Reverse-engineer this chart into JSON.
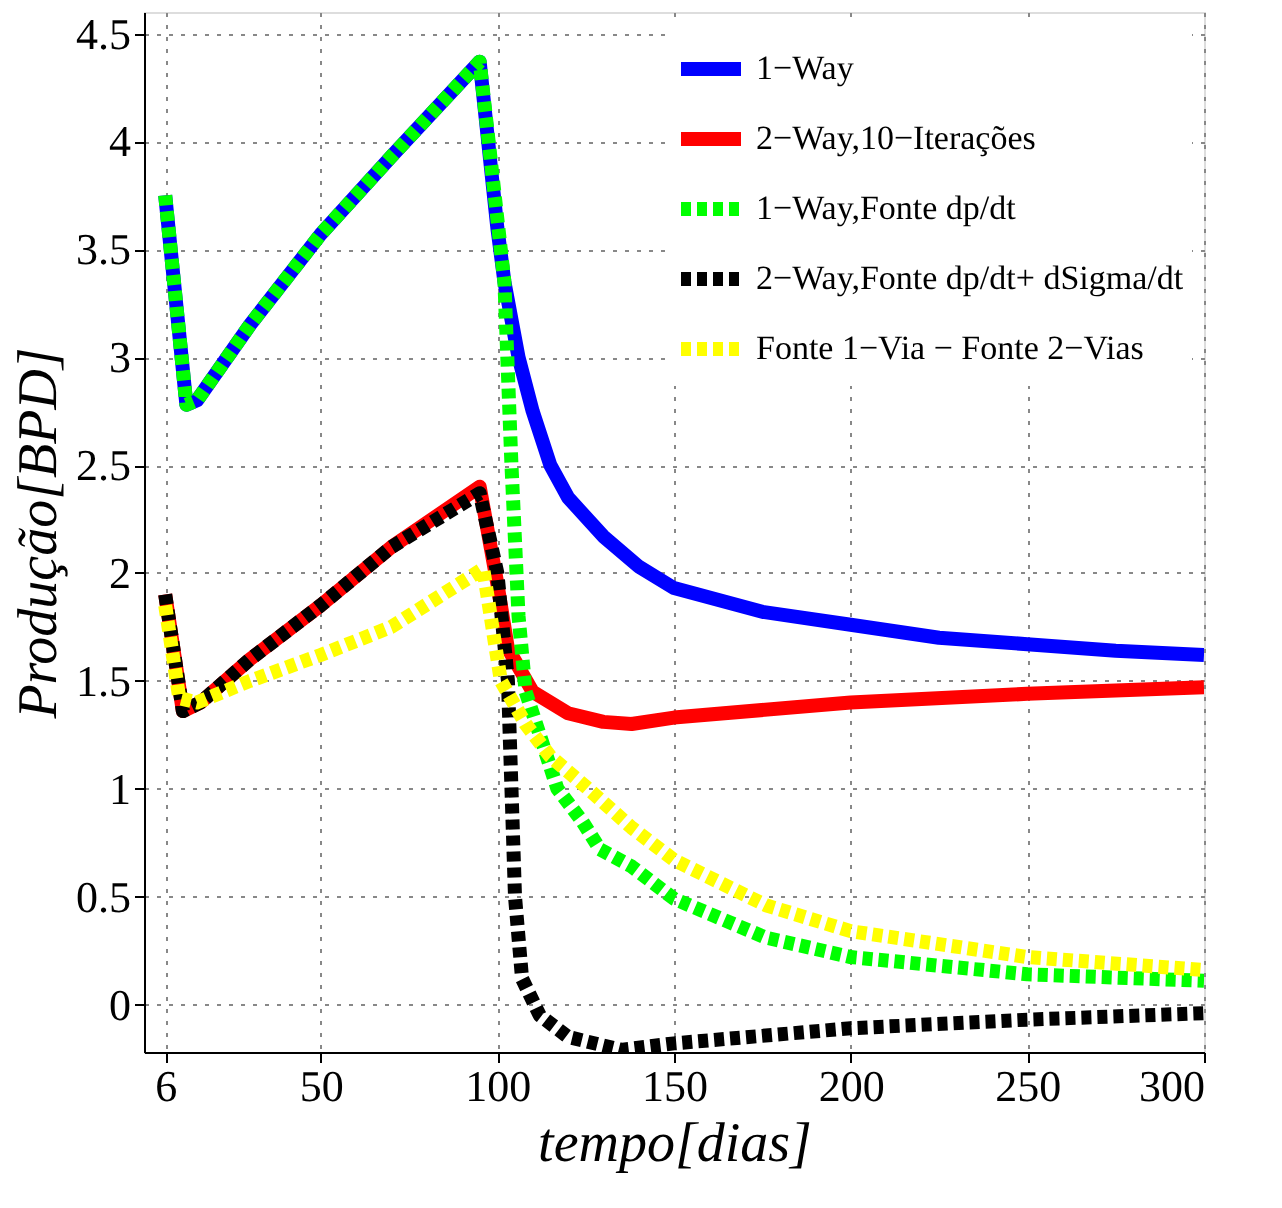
{
  "chart_data": {
    "type": "line",
    "xlabel": "tempo[dias]",
    "ylabel": "Produção[BPD]",
    "xlim": [
      0,
      300
    ],
    "xticks": [
      6,
      50,
      100,
      150,
      200,
      250,
      300
    ],
    "ylim": [
      -0.22,
      4.6
    ],
    "yticks": [
      0,
      0.5,
      1,
      1.5,
      2,
      2.5,
      3,
      3.5,
      4,
      4.5
    ],
    "grid": true,
    "legend": "top right",
    "series": [
      {
        "name": "1−Way",
        "color": "#0000ff",
        "line_style": "solid",
        "x": [
          6,
          12,
          15,
          30,
          50,
          70,
          95,
          100,
          102,
          106,
          110,
          115,
          120,
          130,
          140,
          150,
          175,
          200,
          225,
          250,
          275,
          300
        ],
        "values": [
          3.75,
          2.78,
          2.8,
          3.15,
          3.57,
          3.93,
          4.37,
          3.6,
          3.35,
          3.0,
          2.75,
          2.5,
          2.35,
          2.17,
          2.03,
          1.93,
          1.82,
          1.76,
          1.7,
          1.67,
          1.64,
          1.62
        ]
      },
      {
        "name": "2−Way,10−Iterações",
        "color": "#ff0000",
        "line_style": "solid",
        "x": [
          6,
          11,
          16,
          30,
          50,
          70,
          95,
          100,
          103,
          110,
          120,
          130,
          138,
          150,
          200,
          250,
          300
        ],
        "values": [
          1.9,
          1.36,
          1.4,
          1.6,
          1.85,
          2.12,
          2.4,
          1.95,
          1.65,
          1.45,
          1.35,
          1.31,
          1.3,
          1.33,
          1.4,
          1.44,
          1.47
        ]
      },
      {
        "name": "1−Way,Fonte dp/dt",
        "color": "#00ff00",
        "line_style": "dashed",
        "x": [
          6,
          12,
          15,
          30,
          50,
          70,
          95,
          102,
          104,
          106,
          108,
          112,
          117,
          124,
          129,
          138,
          150,
          176,
          200,
          250,
          300
        ],
        "values": [
          3.75,
          2.78,
          2.8,
          3.15,
          3.57,
          3.93,
          4.37,
          3.35,
          2.5,
          1.8,
          1.45,
          1.25,
          1.0,
          0.85,
          0.72,
          0.64,
          0.49,
          0.31,
          0.22,
          0.14,
          0.11
        ]
      },
      {
        "name": "2−Way,Fonte dp/dt+ dSigma/dt",
        "color": "#000000",
        "line_style": "dashed",
        "x": [
          6,
          11,
          16,
          30,
          50,
          70,
          95,
          100,
          103,
          105,
          107,
          112,
          120,
          135,
          150,
          200,
          250,
          300
        ],
        "values": [
          1.9,
          1.36,
          1.4,
          1.6,
          1.85,
          2.12,
          2.37,
          2.0,
          1.5,
          0.5,
          0.12,
          -0.05,
          -0.15,
          -0.21,
          -0.18,
          -0.11,
          -0.07,
          -0.04
        ]
      },
      {
        "name": "Fonte 1−Via − Fonte 2−Vias",
        "color": "#ffff00",
        "line_style": "dashed",
        "x": [
          6,
          10,
          15,
          30,
          50,
          70,
          96,
          101,
          108,
          115,
          125,
          138,
          150,
          176,
          200,
          250,
          300
        ],
        "values": [
          1.85,
          1.42,
          1.4,
          1.5,
          1.62,
          1.75,
          2.02,
          1.5,
          1.3,
          1.15,
          1.01,
          0.82,
          0.67,
          0.46,
          0.34,
          0.22,
          0.16
        ]
      }
    ]
  }
}
